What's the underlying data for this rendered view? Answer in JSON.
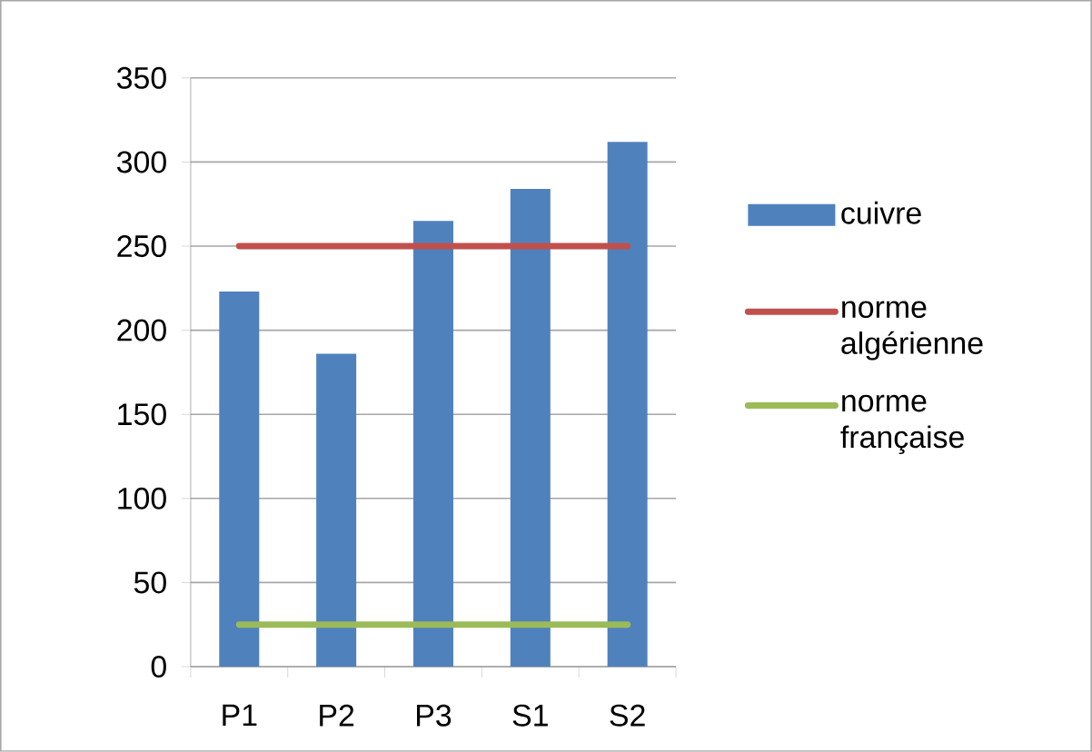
{
  "chart_data": {
    "type": "bar",
    "categories": [
      "P1",
      "P2",
      "P3",
      "S1",
      "S2"
    ],
    "series": [
      {
        "name": "cuivre",
        "color": "#4f81bd",
        "values": [
          223,
          186,
          265,
          284,
          312
        ]
      },
      {
        "name": "norme algérienne",
        "type": "line",
        "color": "#c0504d",
        "values": [
          250,
          250,
          250,
          250,
          250
        ]
      },
      {
        "name": "norme française",
        "type": "line",
        "color": "#9bbb59",
        "values": [
          25,
          25,
          25,
          25,
          25
        ]
      }
    ],
    "ylim": [
      0,
      350
    ],
    "yticks": [
      0,
      50,
      100,
      150,
      200,
      250,
      300,
      350
    ],
    "grid": "y",
    "legend": "right"
  }
}
